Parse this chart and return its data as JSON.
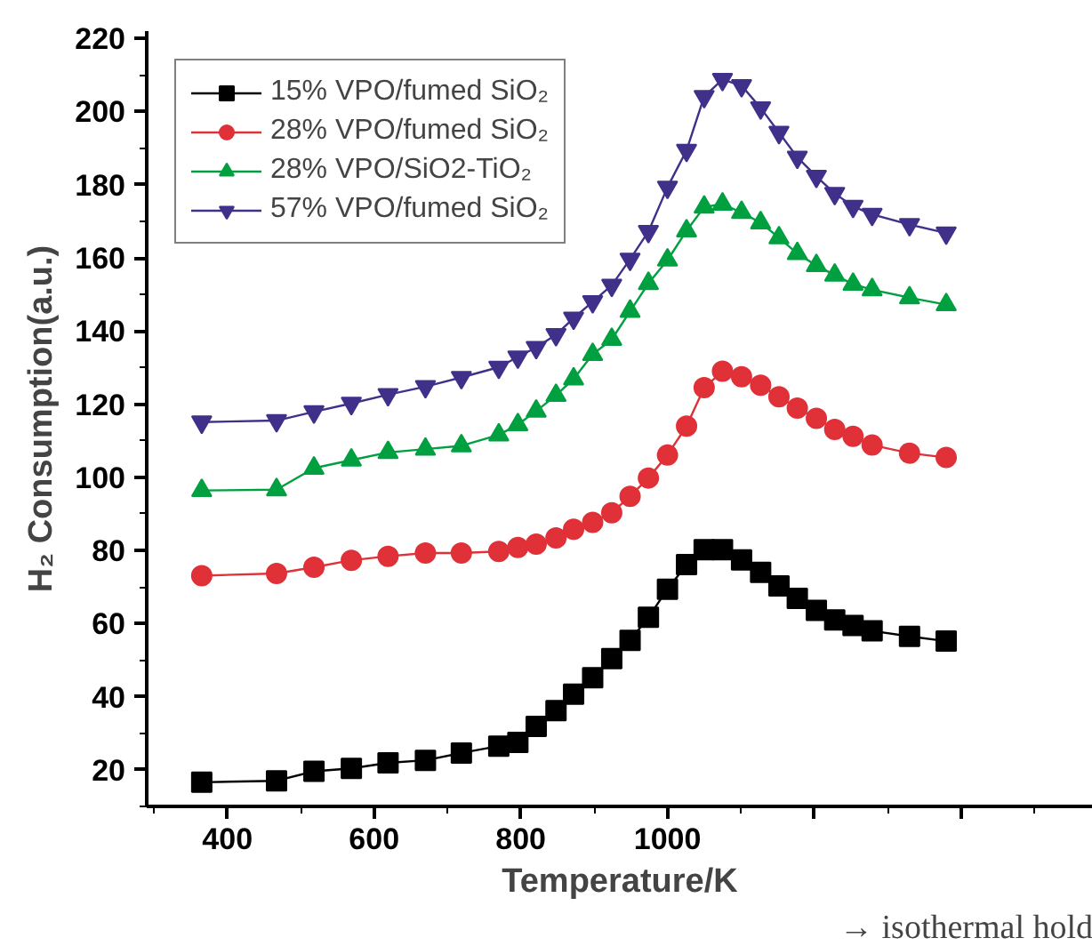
{
  "chart_data": {
    "type": "line",
    "xlabel": "Temperature/K",
    "ylabel": "H₂ Consumption(a.u.)",
    "x": [
      365,
      467,
      518,
      569,
      619,
      670,
      719,
      770,
      796,
      821,
      848,
      872,
      898,
      924,
      949,
      974,
      1000,
      1026,
      1050,
      1075,
      1101,
      1127,
      1152,
      1177,
      1203,
      1228,
      1253,
      1279,
      1330,
      1380
    ],
    "xlim": [
      290,
      1580
    ],
    "ylim": [
      10,
      222
    ],
    "xticks": [
      400,
      600,
      800,
      1000,
      {
        "value": 1200,
        "label": null
      },
      {
        "value": 1400,
        "label": null
      }
    ],
    "yticks": [
      20,
      40,
      60,
      80,
      100,
      120,
      140,
      160,
      180,
      200,
      220
    ],
    "grid": false,
    "legend": "top left",
    "line_style": "solid",
    "annotations": [
      "→ isothermal hold"
    ],
    "series": [
      {
        "name": "15% VPO/fumed SiO₂",
        "color": "#000000",
        "marker": "square",
        "values": [
          16.6,
          17.0,
          19.6,
          20.4,
          21.9,
          22.6,
          24.6,
          26.5,
          27.5,
          31.9,
          36.2,
          40.7,
          45.2,
          50.4,
          55.4,
          61.7,
          69.4,
          76.1,
          80.2,
          80.2,
          77.4,
          74.0,
          70.3,
          66.9,
          63.6,
          61.0,
          59.5,
          58.0,
          56.5,
          55.2
        ]
      },
      {
        "name": "28% VPO/fumed SiO₂",
        "color": "#e03038",
        "marker": "circle",
        "values": [
          73.1,
          73.7,
          75.4,
          77.3,
          78.4,
          79.3,
          79.3,
          79.7,
          80.8,
          81.7,
          83.4,
          85.8,
          87.7,
          90.3,
          94.8,
          99.8,
          106.1,
          114.0,
          124.5,
          129.0,
          127.5,
          125.2,
          122.0,
          118.9,
          116.1,
          113.1,
          111.2,
          108.8,
          106.6,
          105.4
        ]
      },
      {
        "name": "28% VPO/SiO2-TiO₂",
        "color": "#00a040",
        "marker": "triangle",
        "values": [
          96.4,
          96.6,
          102.5,
          104.7,
          106.8,
          107.7,
          108.6,
          111.6,
          114.4,
          118.1,
          122.4,
          126.9,
          133.6,
          137.7,
          145.4,
          153.0,
          159.4,
          167.4,
          173.9,
          174.7,
          172.4,
          169.6,
          165.5,
          161.2,
          157.9,
          155.3,
          152.8,
          151.3,
          149.1,
          147.2
        ]
      },
      {
        "name": "57% VPO/fumed SiO₂",
        "color": "#40308a",
        "marker": "triangle",
        "values": [
          115.1,
          115.5,
          117.9,
          120.2,
          122.6,
          124.8,
          127.3,
          130.1,
          132.9,
          135.5,
          139.0,
          143.5,
          148.0,
          152.5,
          159.6,
          167.2,
          179.3,
          189.4,
          204.1,
          208.8,
          207.1,
          201.0,
          194.3,
          187.5,
          182.3,
          177.6,
          174.1,
          171.9,
          169.1,
          166.8
        ]
      }
    ]
  }
}
